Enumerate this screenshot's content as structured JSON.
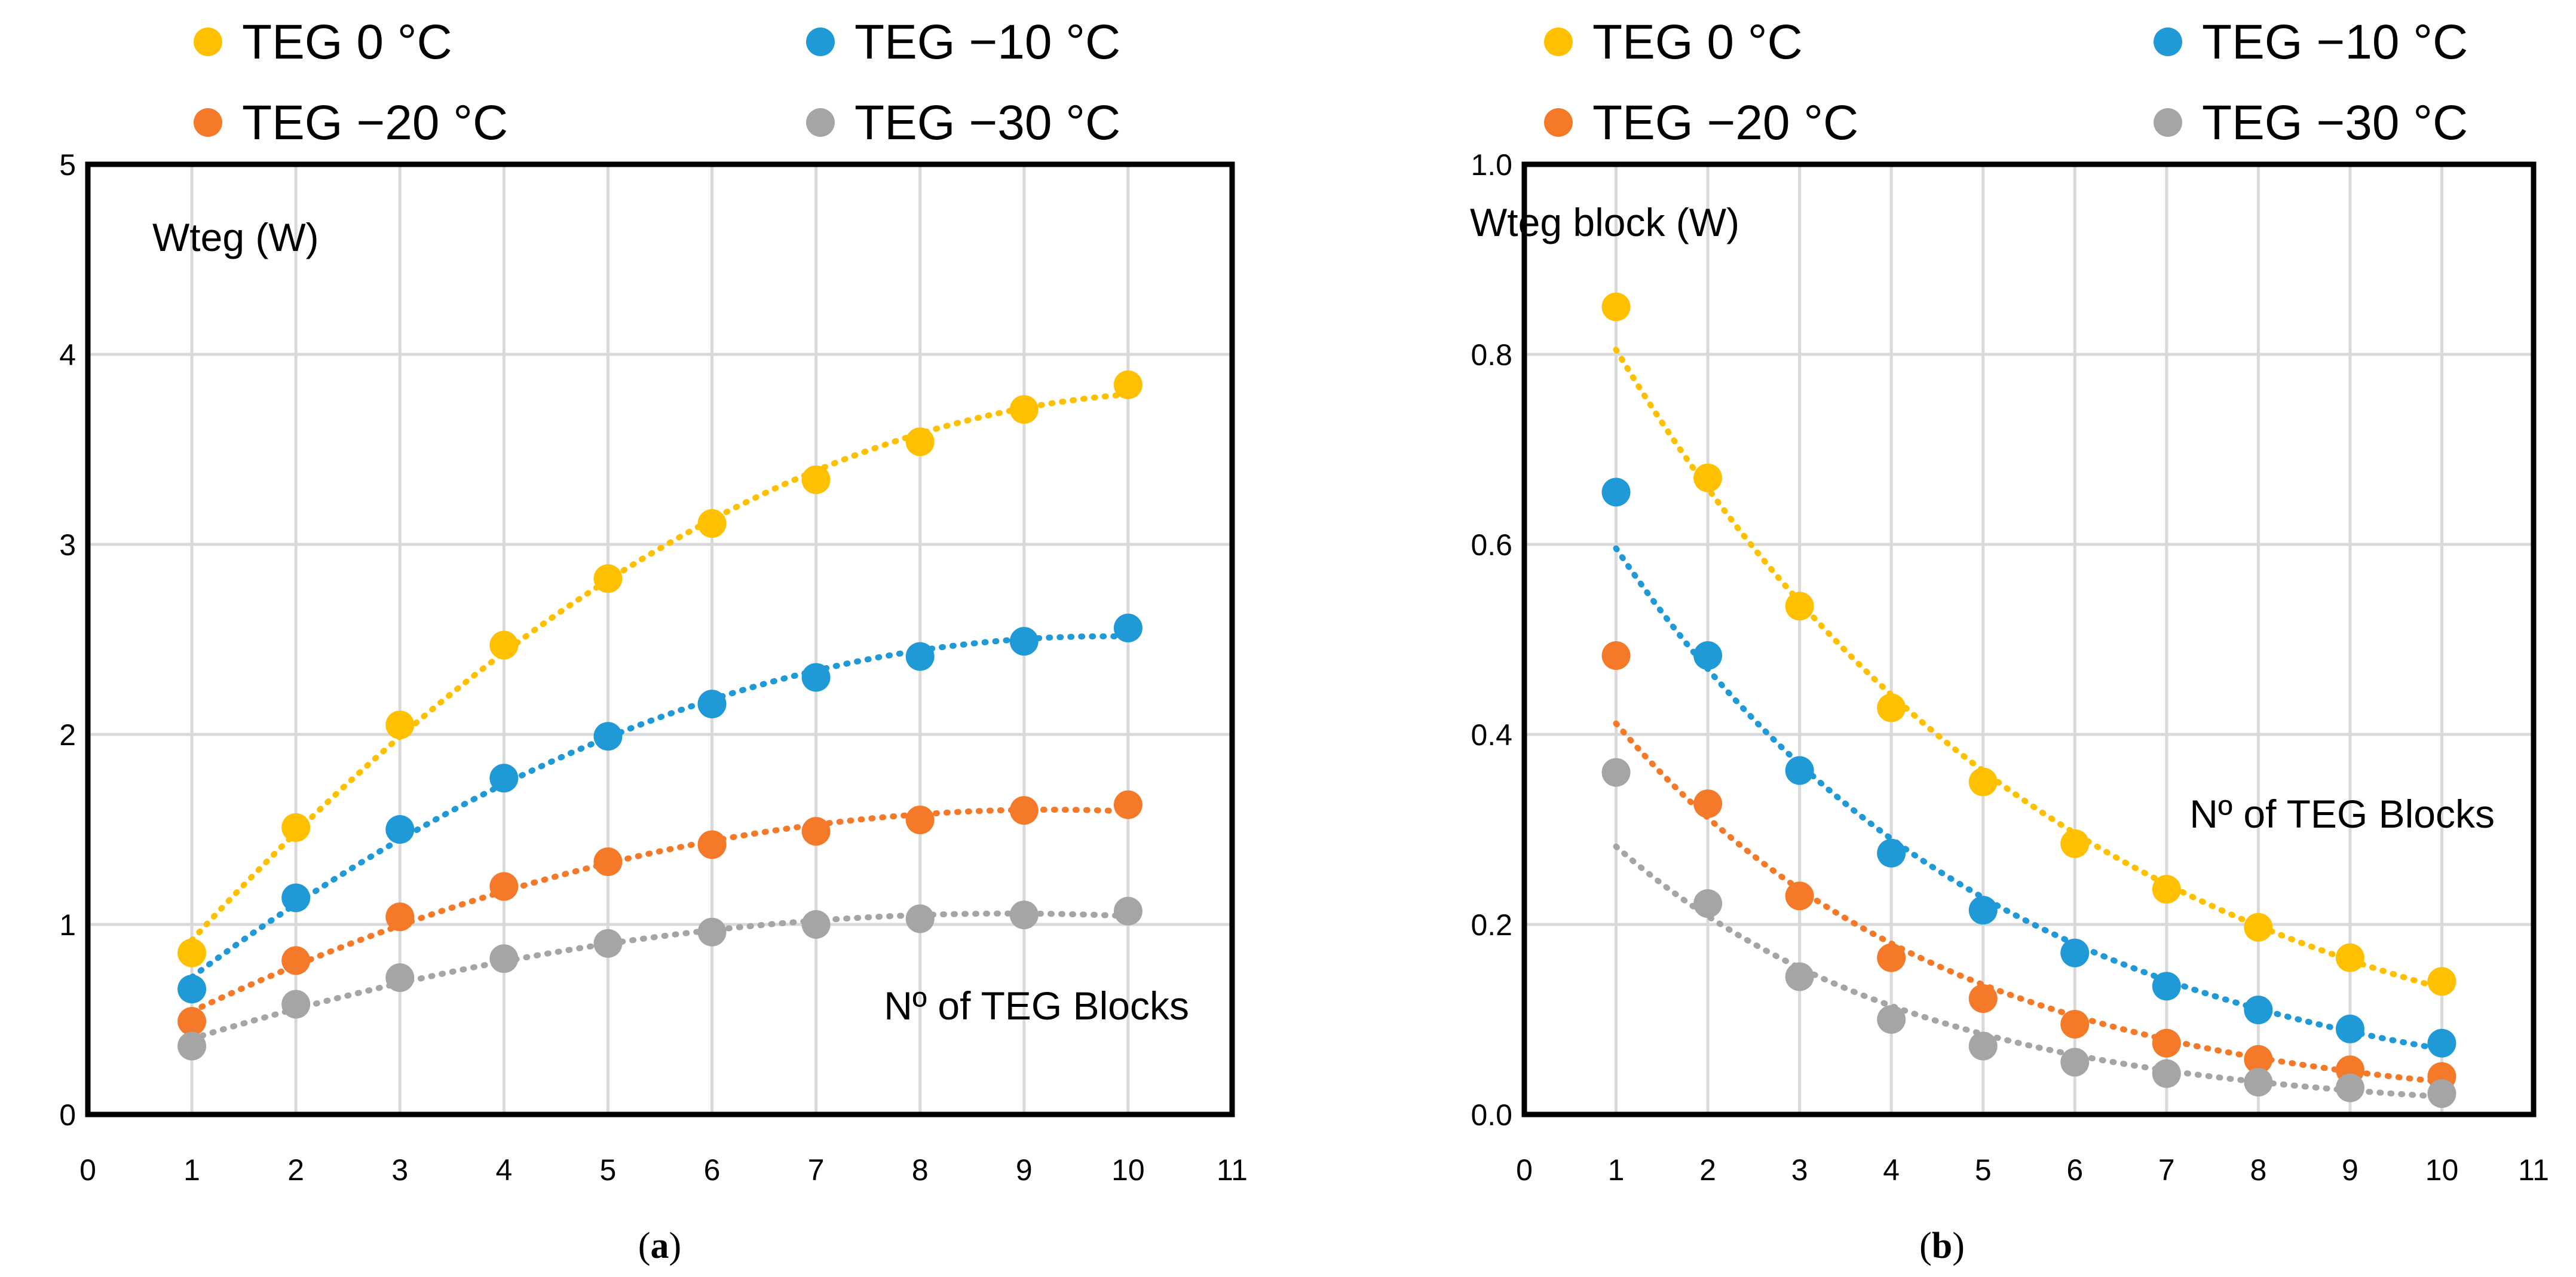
{
  "colors": {
    "teg0": "#FFC000",
    "teg10": "#1F9AD6",
    "teg20": "#F47A2A",
    "teg30": "#A5A5A5",
    "grid": "#D9D9D9",
    "frame": "#000000"
  },
  "chart_data": [
    {
      "type": "scatter",
      "id": "a",
      "caption": {
        "open": "(",
        "letter": "a",
        "close": ")"
      },
      "ylabel": "Wteg (W)",
      "xlabel": "Nº of TEG Blocks",
      "xlim": [
        0,
        11
      ],
      "ylim": [
        0,
        5
      ],
      "xticks": [
        "0",
        "1",
        "2",
        "3",
        "4",
        "5",
        "6",
        "7",
        "8",
        "9",
        "10",
        "11"
      ],
      "yticks": [
        "0",
        "1",
        "2",
        "3",
        "4",
        "5"
      ],
      "grid": true,
      "legend_position": "top",
      "series": [
        {
          "name": "TEG 0 °C",
          "color_key": "teg0",
          "x": [
            1,
            2,
            3,
            4,
            5,
            6,
            7,
            8,
            9,
            10
          ],
          "values": [
            0.85,
            1.51,
            2.05,
            2.47,
            2.82,
            3.11,
            3.34,
            3.54,
            3.71,
            3.84
          ],
          "trend": "poly"
        },
        {
          "name": "TEG −10 °C",
          "color_key": "teg10",
          "x": [
            1,
            2,
            3,
            4,
            5,
            6,
            7,
            8,
            9,
            10
          ],
          "values": [
            0.66,
            1.14,
            1.5,
            1.77,
            1.99,
            2.16,
            2.3,
            2.41,
            2.49,
            2.56
          ],
          "trend": "poly"
        },
        {
          "name": "TEG −20 °C",
          "color_key": "teg20",
          "x": [
            1,
            2,
            3,
            4,
            5,
            6,
            7,
            8,
            9,
            10
          ],
          "values": [
            0.49,
            0.81,
            1.04,
            1.2,
            1.33,
            1.42,
            1.49,
            1.55,
            1.6,
            1.63
          ],
          "trend": "poly"
        },
        {
          "name": "TEG −30 °C",
          "color_key": "teg30",
          "x": [
            1,
            2,
            3,
            4,
            5,
            6,
            7,
            8,
            9,
            10
          ],
          "values": [
            0.36,
            0.58,
            0.72,
            0.82,
            0.9,
            0.96,
            1.0,
            1.03,
            1.05,
            1.07
          ],
          "trend": "poly"
        }
      ]
    },
    {
      "type": "scatter",
      "id": "b",
      "caption": {
        "open": "(",
        "letter": "b",
        "close": ")"
      },
      "ylabel": "Wteg block (W)",
      "xlabel": "Nº of TEG Blocks",
      "xlim": [
        0,
        11
      ],
      "ylim": [
        0,
        1.0
      ],
      "xticks": [
        "0",
        "1",
        "2",
        "3",
        "4",
        "5",
        "6",
        "7",
        "8",
        "9",
        "10",
        "11"
      ],
      "yticks": [
        "0.0",
        "0.2",
        "0.4",
        "0.6",
        "0.8",
        "1.0"
      ],
      "grid": true,
      "legend_position": "top",
      "series": [
        {
          "name": "TEG 0 °C",
          "color_key": "teg0",
          "x": [
            1,
            2,
            3,
            4,
            5,
            6,
            7,
            8,
            9,
            10
          ],
          "values": [
            0.85,
            0.67,
            0.535,
            0.428,
            0.35,
            0.285,
            0.237,
            0.197,
            0.165,
            0.14
          ],
          "trend": "exp"
        },
        {
          "name": "TEG −10 °C",
          "color_key": "teg10",
          "x": [
            1,
            2,
            3,
            4,
            5,
            6,
            7,
            8,
            9,
            10
          ],
          "values": [
            0.655,
            0.483,
            0.362,
            0.275,
            0.215,
            0.17,
            0.135,
            0.11,
            0.09,
            0.075
          ],
          "trend": "exp"
        },
        {
          "name": "TEG −20 °C",
          "color_key": "teg20",
          "x": [
            1,
            2,
            3,
            4,
            5,
            6,
            7,
            8,
            9,
            10
          ],
          "values": [
            0.483,
            0.327,
            0.23,
            0.165,
            0.122,
            0.095,
            0.075,
            0.058,
            0.047,
            0.04
          ],
          "trend": "exp"
        },
        {
          "name": "TEG −30 °C",
          "color_key": "teg30",
          "x": [
            1,
            2,
            3,
            4,
            5,
            6,
            7,
            8,
            9,
            10
          ],
          "values": [
            0.36,
            0.222,
            0.145,
            0.1,
            0.072,
            0.055,
            0.043,
            0.034,
            0.028,
            0.022
          ],
          "trend": "exp"
        }
      ]
    }
  ]
}
